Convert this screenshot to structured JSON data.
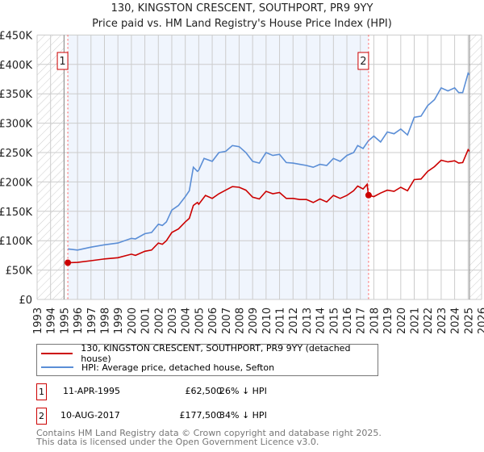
{
  "title": "130, KINGSTON CRESCENT, SOUTHPORT, PR9 9YY",
  "subtitle": "Price paid vs. HM Land Registry's House Price Index (HPI)",
  "chart_data": {
    "type": "line",
    "title": "130, KINGSTON CRESCENT, SOUTHPORT, PR9 9YY",
    "xlim": [
      1993,
      2026
    ],
    "ylim": [
      0,
      450000
    ],
    "x_ticks": [
      "1993",
      "1994",
      "1995",
      "1996",
      "1997",
      "1998",
      "1999",
      "2000",
      "2001",
      "2002",
      "2003",
      "2004",
      "2005",
      "2006",
      "2007",
      "2008",
      "2009",
      "2010",
      "2011",
      "2012",
      "2013",
      "2014",
      "2015",
      "2016",
      "2017",
      "2018",
      "2019",
      "2020",
      "2021",
      "2022",
      "2023",
      "2024",
      "2025",
      "2026"
    ],
    "y_ticks": [
      {
        "v": 0,
        "label": "£0"
      },
      {
        "v": 50000,
        "label": "£50K"
      },
      {
        "v": 100000,
        "label": "£100K"
      },
      {
        "v": 150000,
        "label": "£150K"
      },
      {
        "v": 200000,
        "label": "£200K"
      },
      {
        "v": 250000,
        "label": "£250K"
      },
      {
        "v": 300000,
        "label": "£300K"
      },
      {
        "v": 350000,
        "label": "£350K"
      },
      {
        "v": 400000,
        "label": "£400K"
      },
      {
        "v": 450000,
        "label": "£450K"
      }
    ],
    "grid": true,
    "series": [
      {
        "name": "130, KINGSTON CRESCENT, SOUTHPORT, PR9 9YY (detached house)",
        "color": "#cc0000",
        "x": [
          1995.3,
          1996,
          1997,
          1998,
          1999,
          2000,
          2000.3,
          2001,
          2001.5,
          2002,
          2002.3,
          2002.6,
          2003,
          2003.5,
          2004,
          2004.3,
          2004.6,
          2004.9,
          2005,
          2005.5,
          2006,
          2006.5,
          2007,
          2007.5,
          2008,
          2008.5,
          2009,
          2009.5,
          2010,
          2010.5,
          2011,
          2011.5,
          2012,
          2012.5,
          2013,
          2013.5,
          2014,
          2014.5,
          2015,
          2015.5,
          2016,
          2016.5,
          2016.8,
          2017.2,
          2017.5,
          2017.6,
          2018,
          2018.5,
          2019,
          2019.5,
          2020,
          2020.5,
          2021,
          2021.5,
          2022,
          2022.5,
          2023,
          2023.5,
          2024,
          2024.3,
          2024.6,
          2025,
          2025.1
        ],
        "y": [
          62500,
          63000,
          66000,
          69000,
          71000,
          77000,
          75000,
          82000,
          84000,
          96000,
          94000,
          100000,
          114000,
          120000,
          132000,
          138000,
          160000,
          165000,
          162000,
          177000,
          172000,
          180000,
          186000,
          192000,
          191000,
          186000,
          174000,
          171000,
          184000,
          180000,
          182000,
          172000,
          172000,
          170000,
          170000,
          165000,
          171000,
          166000,
          177000,
          172000,
          177000,
          185000,
          193000,
          188000,
          196000,
          177500,
          175000,
          181000,
          186000,
          184000,
          191000,
          185000,
          204000,
          205000,
          218000,
          226000,
          237000,
          234000,
          236000,
          232000,
          233000,
          255000,
          252000
        ]
      },
      {
        "name": "HPI: Average price, detached house, Sefton",
        "color": "#5b8ed6",
        "x": [
          1995.3,
          1996,
          1997,
          1998,
          1999,
          2000,
          2000.3,
          2001,
          2001.5,
          2002,
          2002.3,
          2002.6,
          2003,
          2003.5,
          2004,
          2004.3,
          2004.6,
          2004.9,
          2005,
          2005.4,
          2006,
          2006.5,
          2007,
          2007.5,
          2008,
          2008.5,
          2009,
          2009.5,
          2010,
          2010.5,
          2011,
          2011.5,
          2012,
          2012.5,
          2013,
          2013.5,
          2014,
          2014.5,
          2015,
          2015.5,
          2016,
          2016.5,
          2016.8,
          2017.2,
          2017.6,
          2018,
          2018.5,
          2019,
          2019.5,
          2020,
          2020.5,
          2021,
          2021.5,
          2022,
          2022.5,
          2023,
          2023.5,
          2024,
          2024.3,
          2024.6,
          2025,
          2025.1
        ],
        "y": [
          86000,
          84000,
          89000,
          93000,
          96000,
          104000,
          103000,
          112000,
          114000,
          128000,
          126000,
          132000,
          152000,
          160000,
          175000,
          185000,
          225000,
          218000,
          220000,
          240000,
          235000,
          250000,
          252000,
          262000,
          260000,
          250000,
          235000,
          232000,
          250000,
          245000,
          247000,
          233000,
          232000,
          230000,
          228000,
          225000,
          230000,
          228000,
          240000,
          235000,
          245000,
          250000,
          262000,
          257000,
          270000,
          278000,
          268000,
          285000,
          282000,
          290000,
          280000,
          310000,
          312000,
          330000,
          340000,
          360000,
          355000,
          360000,
          352000,
          352000,
          385000,
          382000
        ]
      }
    ],
    "sales": [
      {
        "id": "1",
        "x": 1995.28,
        "y": 62500
      },
      {
        "id": "2",
        "x": 2017.61,
        "y": 177500
      }
    ],
    "legend": "below"
  },
  "transactions": [
    {
      "id": "1",
      "date": "11-APR-1995",
      "price": "£62,500",
      "hpi": "26% ↓ HPI"
    },
    {
      "id": "2",
      "date": "10-AUG-2017",
      "price": "£177,500",
      "hpi": "34% ↓ HPI"
    }
  ],
  "footer": [
    "Contains HM Land Registry data © Crown copyright and database right 2025.",
    "This data is licensed under the Open Government Licence v3.0."
  ]
}
